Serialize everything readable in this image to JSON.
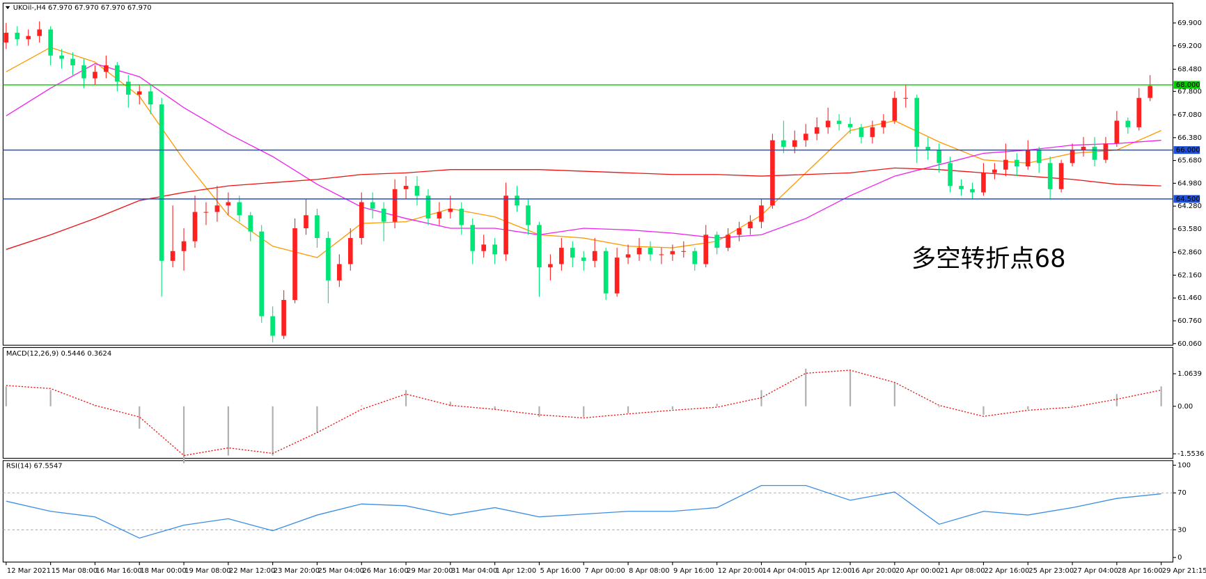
{
  "chart_data": [
    {
      "type": "candlestick",
      "title": "UKOil-,H4  67.970 67.970 67.970 67.970",
      "annotation": "多空转折点68",
      "annotation_color": "#ff2020",
      "up_color": "#ff2020",
      "down_color": "#00e676",
      "ylim": [
        60.01,
        70.51
      ],
      "yticks": [
        {
          "value": 69.9,
          "label": "69.900"
        },
        {
          "value": 69.2,
          "label": "69.200"
        },
        {
          "value": 68.48,
          "label": "68.480"
        },
        {
          "value": 67.8,
          "label": "67.800"
        },
        {
          "value": 67.08,
          "label": "67.080"
        },
        {
          "value": 66.38,
          "label": "66.380"
        },
        {
          "value": 65.68,
          "label": "65.680"
        },
        {
          "value": 64.98,
          "label": "64.980"
        },
        {
          "value": 64.28,
          "label": "64.280"
        },
        {
          "value": 63.58,
          "label": "63.580"
        },
        {
          "value": 62.86,
          "label": "62.860"
        },
        {
          "value": 62.16,
          "label": "62.160"
        },
        {
          "value": 61.46,
          "label": "61.460"
        },
        {
          "value": 60.76,
          "label": "60.760"
        },
        {
          "value": 60.06,
          "label": "60.060"
        }
      ],
      "levels": [
        {
          "value": 68,
          "label": "68.000",
          "color": "#00cc00"
        },
        {
          "value": 66,
          "label": "66.000",
          "color": "#1f4fd6"
        },
        {
          "value": 64.5,
          "label": "64.500",
          "color": "#1f4fd6"
        }
      ],
      "time_labels": [
        "12 Mar 2021",
        "15 Mar 08:00",
        "16 Mar 16:00",
        "18 Mar 00:00",
        "19 Mar 08:00",
        "22 Mar 12:00",
        "23 Mar 20:00",
        "25 Mar 04:00",
        "26 Mar 16:00",
        "29 Mar 20:00",
        "31 Mar 04:00",
        "1 Apr 12:00",
        "5 Apr 16:00",
        "7 Apr 00:00",
        "8 Apr 08:00",
        "9 Apr 16:00",
        "12 Apr 20:00",
        "14 Apr 04:00",
        "15 Apr 12:00",
        "16 Apr 20:00",
        "20 Apr 00:00",
        "21 Apr 08:00",
        "22 Apr 16:00",
        "25 Apr 23:00",
        "27 Apr 04:00",
        "28 Apr 16:00",
        "29 Apr 21:15"
      ],
      "ohlc": [
        [
          69.3,
          69.9,
          69.1,
          69.6
        ],
        [
          69.6,
          69.8,
          69.2,
          69.4
        ],
        [
          69.4,
          69.7,
          69.2,
          69.5
        ],
        [
          69.5,
          69.95,
          69.3,
          69.7
        ],
        [
          69.7,
          69.8,
          68.6,
          68.9
        ],
        [
          68.9,
          69.1,
          68.5,
          68.8
        ],
        [
          68.8,
          69.0,
          68.3,
          68.6
        ],
        [
          68.6,
          68.8,
          67.9,
          68.2
        ],
        [
          68.2,
          68.6,
          68.0,
          68.4
        ],
        [
          68.4,
          68.9,
          68.2,
          68.6
        ],
        [
          68.6,
          68.7,
          67.8,
          68.1
        ],
        [
          68.1,
          68.3,
          67.3,
          67.7
        ],
        [
          67.7,
          68.0,
          67.4,
          67.8
        ],
        [
          67.8,
          68.0,
          67.1,
          67.4
        ],
        [
          67.4,
          67.6,
          61.5,
          62.6
        ],
        [
          62.6,
          64.3,
          62.4,
          62.9
        ],
        [
          62.9,
          63.6,
          62.3,
          63.2
        ],
        [
          63.2,
          64.6,
          63.0,
          64.1
        ],
        [
          64.1,
          64.4,
          63.7,
          64.1
        ],
        [
          64.1,
          64.9,
          63.8,
          64.3
        ],
        [
          64.3,
          64.7,
          64.0,
          64.4
        ],
        [
          64.4,
          64.6,
          63.8,
          64.0
        ],
        [
          64.0,
          64.1,
          63.2,
          63.5
        ],
        [
          63.5,
          63.7,
          60.7,
          60.9
        ],
        [
          60.9,
          61.2,
          60.1,
          60.3
        ],
        [
          60.3,
          61.7,
          60.2,
          61.4
        ],
        [
          61.4,
          63.9,
          61.3,
          63.6
        ],
        [
          63.6,
          64.5,
          63.4,
          64.0
        ],
        [
          64.0,
          64.2,
          63.0,
          63.3
        ],
        [
          63.3,
          63.5,
          61.3,
          62.0
        ],
        [
          62.0,
          62.8,
          61.8,
          62.5
        ],
        [
          62.5,
          63.6,
          62.3,
          63.3
        ],
        [
          63.3,
          64.7,
          63.1,
          64.4
        ],
        [
          64.4,
          64.7,
          63.9,
          64.2
        ],
        [
          64.2,
          64.4,
          63.2,
          63.8
        ],
        [
          63.8,
          65.1,
          63.6,
          64.8
        ],
        [
          64.8,
          65.2,
          64.5,
          64.9
        ],
        [
          64.9,
          65.2,
          64.3,
          64.6
        ],
        [
          64.6,
          64.8,
          63.7,
          63.9
        ],
        [
          63.9,
          64.4,
          63.7,
          64.1
        ],
        [
          64.1,
          64.6,
          63.9,
          64.2
        ],
        [
          64.2,
          64.4,
          63.4,
          63.7
        ],
        [
          63.7,
          63.9,
          62.5,
          62.9
        ],
        [
          62.9,
          63.4,
          62.7,
          63.1
        ],
        [
          63.1,
          63.3,
          62.5,
          62.8
        ],
        [
          62.8,
          65.0,
          62.6,
          64.6
        ],
        [
          64.6,
          64.9,
          64.1,
          64.3
        ],
        [
          64.3,
          64.5,
          63.4,
          63.7
        ],
        [
          63.7,
          63.8,
          61.5,
          62.4
        ],
        [
          62.4,
          62.8,
          62.0,
          62.5
        ],
        [
          62.5,
          63.3,
          62.3,
          63.0
        ],
        [
          63.0,
          63.2,
          62.4,
          62.7
        ],
        [
          62.7,
          62.9,
          62.3,
          62.6
        ],
        [
          62.6,
          63.3,
          62.4,
          62.9
        ],
        [
          62.9,
          63.0,
          61.4,
          61.6
        ],
        [
          61.6,
          63.0,
          61.5,
          62.7
        ],
        [
          62.7,
          63.1,
          62.5,
          62.8
        ],
        [
          62.8,
          63.3,
          62.6,
          63.0
        ],
        [
          63.0,
          63.2,
          62.6,
          62.8
        ],
        [
          62.8,
          63.0,
          62.5,
          62.8
        ],
        [
          62.8,
          63.1,
          62.6,
          62.9
        ],
        [
          62.9,
          63.2,
          62.7,
          62.9
        ],
        [
          62.9,
          63.0,
          62.3,
          62.5
        ],
        [
          62.5,
          63.7,
          62.4,
          63.4
        ],
        [
          63.4,
          63.5,
          62.8,
          63.0
        ],
        [
          63.0,
          63.6,
          62.9,
          63.4
        ],
        [
          63.4,
          63.8,
          63.2,
          63.6
        ],
        [
          63.6,
          64.0,
          63.4,
          63.8
        ],
        [
          63.8,
          64.5,
          63.6,
          64.3
        ],
        [
          64.3,
          66.5,
          64.2,
          66.3
        ],
        [
          66.3,
          66.9,
          65.9,
          66.1
        ],
        [
          66.1,
          66.6,
          65.9,
          66.3
        ],
        [
          66.3,
          66.8,
          66.1,
          66.5
        ],
        [
          66.5,
          67.0,
          66.3,
          66.7
        ],
        [
          66.7,
          67.3,
          66.5,
          66.9
        ],
        [
          66.9,
          67.1,
          66.6,
          66.8
        ],
        [
          66.8,
          67.0,
          66.5,
          66.7
        ],
        [
          66.7,
          66.8,
          66.2,
          66.4
        ],
        [
          66.4,
          66.9,
          66.2,
          66.7
        ],
        [
          66.7,
          67.1,
          66.5,
          66.9
        ],
        [
          66.9,
          67.8,
          66.8,
          67.6
        ],
        [
          67.6,
          68.0,
          67.3,
          67.6
        ],
        [
          67.6,
          67.7,
          65.6,
          66.1
        ],
        [
          66.1,
          66.4,
          65.7,
          66.0
        ],
        [
          66.0,
          66.2,
          65.3,
          65.6
        ],
        [
          65.6,
          65.8,
          64.7,
          64.9
        ],
        [
          64.9,
          65.1,
          64.6,
          64.8
        ],
        [
          64.8,
          65.0,
          64.5,
          64.7
        ],
        [
          64.7,
          65.6,
          64.6,
          65.3
        ],
        [
          65.3,
          65.6,
          65.1,
          65.4
        ],
        [
          65.4,
          66.2,
          65.2,
          65.7
        ],
        [
          65.7,
          65.9,
          65.2,
          65.5
        ],
        [
          65.5,
          66.3,
          65.4,
          66.0
        ],
        [
          66.0,
          66.1,
          65.3,
          65.6
        ],
        [
          65.6,
          65.8,
          64.5,
          64.8
        ],
        [
          64.8,
          65.7,
          64.7,
          65.6
        ],
        [
          65.6,
          66.2,
          65.5,
          66.0
        ],
        [
          66.0,
          66.4,
          65.8,
          66.1
        ],
        [
          66.1,
          66.4,
          65.5,
          65.7
        ],
        [
          65.7,
          66.4,
          65.6,
          66.2
        ],
        [
          66.2,
          67.2,
          66.1,
          66.9
        ],
        [
          66.9,
          67.0,
          66.5,
          66.7
        ],
        [
          66.7,
          67.9,
          66.6,
          67.6
        ],
        [
          67.6,
          68.3,
          67.5,
          67.97
        ]
      ],
      "series": [
        {
          "color": "#ff9900",
          "values": [
            68.4,
            69.15,
            68.7,
            67.65,
            65.7,
            64.0,
            63.05,
            62.7,
            63.75,
            63.8,
            64.2,
            63.95,
            63.4,
            63.3,
            63.05,
            63.0,
            63.2,
            64.0,
            65.3,
            66.6,
            66.9,
            66.25,
            65.7,
            65.6,
            65.9,
            66.0,
            66.6
          ]
        },
        {
          "color": "#ee22ee",
          "values": [
            67.05,
            67.9,
            68.65,
            68.25,
            67.3,
            66.5,
            65.8,
            64.95,
            64.25,
            63.9,
            63.6,
            63.6,
            63.4,
            63.6,
            63.55,
            63.45,
            63.3,
            63.4,
            63.9,
            64.6,
            65.2,
            65.55,
            65.9,
            66.0,
            66.15,
            66.2,
            66.3
          ]
        },
        {
          "color": "#ee1111",
          "values": [
            62.95,
            63.4,
            63.9,
            64.45,
            64.7,
            64.9,
            65.0,
            65.1,
            65.25,
            65.3,
            65.4,
            65.4,
            65.4,
            65.35,
            65.3,
            65.25,
            65.25,
            65.2,
            65.25,
            65.3,
            65.45,
            65.4,
            65.3,
            65.2,
            65.1,
            64.95,
            64.9
          ]
        }
      ]
    },
    {
      "type": "macd",
      "title": "MACD(12,26,9) 0.5446 0.3624",
      "ylim": [
        -1.7,
        1.92
      ],
      "yticks": [
        1.0639,
        {
          "value": 0,
          "label": "0.00"
        },
        -1.5536
      ],
      "histogram_color": "#b0b0b0",
      "signal_color": "#ee1111",
      "histogram": [
        0.65,
        0.53,
        0.03,
        -0.73,
        -1.86,
        -1.61,
        -1.61,
        -0.86,
        0.03,
        0.53,
        0.15,
        -0.1,
        -0.35,
        -0.35,
        -0.23,
        -0.1,
        0.08,
        0.53,
        1.23,
        1.16,
        0.78,
        -0.03,
        -0.28,
        -0.1,
        0.03,
        0.4,
        0.65
      ],
      "signal": [
        0.68,
        0.58,
        0.03,
        -0.35,
        -1.61,
        -1.36,
        -1.54,
        -0.86,
        -0.1,
        0.4,
        0.03,
        -0.1,
        -0.28,
        -0.38,
        -0.25,
        -0.13,
        -0.03,
        0.28,
        1.08,
        1.18,
        0.78,
        0.03,
        -0.33,
        -0.13,
        -0.03,
        0.23,
        0.53
      ]
    },
    {
      "type": "line",
      "title": "RSI(14) 67.5547",
      "ylim": [
        -5,
        105
      ],
      "yticks": [
        100,
        70,
        30,
        0
      ],
      "color": "#3a8ee6",
      "values": [
        61,
        50,
        44,
        21,
        35,
        42,
        29,
        46,
        58,
        56,
        46,
        54,
        44,
        47,
        50,
        50,
        54,
        78,
        78,
        62,
        71,
        36,
        50,
        46,
        54,
        64,
        69
      ]
    }
  ]
}
